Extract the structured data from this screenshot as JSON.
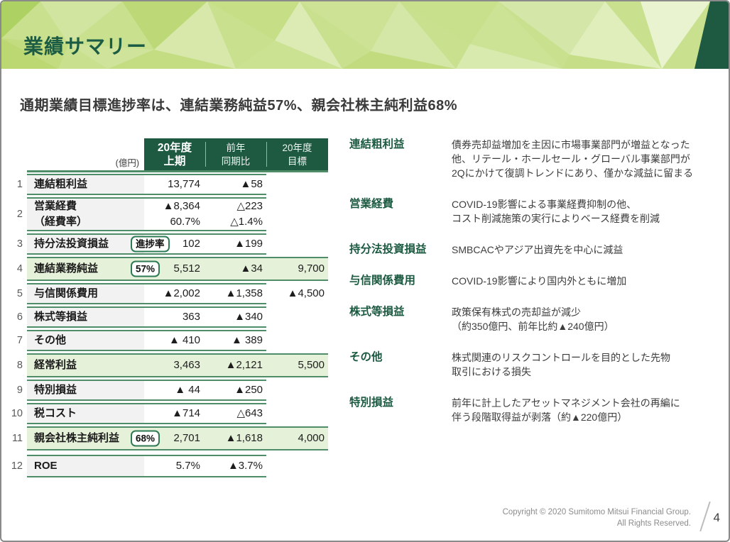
{
  "slide": {
    "title": "業績サマリー",
    "subtitle": "通期業績目標進捗率は、連結業務純益57%、親会社株主純利益68%",
    "footer": {
      "copyright_line1": "Copyright © 2020 Sumitomo Mitsui Financial Group.",
      "copyright_line2": "All Rights Reserved.",
      "page_number": "4"
    }
  },
  "colors": {
    "brand_dark_green": "#1e5a42",
    "title_green": "#1c5c44",
    "line_green": "#4f8c68",
    "highlight_row_green": "#e6f1da",
    "label_column_gray": "#f2f2f2",
    "banner_light_green": "#c9e18f"
  },
  "table": {
    "unit_label": "(億円)",
    "columns": [
      {
        "line1": "20年度",
        "line2": "上期",
        "emphasis": true
      },
      {
        "line1": "前年",
        "line2": "同期比",
        "emphasis": false
      },
      {
        "line1": "20年度",
        "line2": "目標",
        "emphasis": false
      }
    ],
    "rows": [
      {
        "num": "1",
        "label": "連結粗利益",
        "c1": "13,774",
        "c2": "▲58",
        "c3": "",
        "highlight": false
      },
      {
        "num": "2",
        "label": "営業経費",
        "label2": "（経費率）",
        "c1": "▲8,364",
        "c1b": "60.7%",
        "c2": "△223",
        "c2b": "△1.4%",
        "c3": "",
        "highlight": false
      },
      {
        "num": "3",
        "label": "持分法投資損益",
        "badge": "進捗率",
        "c1": "102",
        "c2": "▲199",
        "c3": "",
        "highlight": false
      },
      {
        "num": "4",
        "label": "連結業務純益",
        "badge": "57%",
        "c1": "5,512",
        "c2": "▲34",
        "c3": "9,700",
        "highlight": true
      },
      {
        "num": "5",
        "label": "与信関係費用",
        "c1": "▲2,002",
        "c2": "▲1,358",
        "c3": "▲4,500",
        "highlight": false
      },
      {
        "num": "6",
        "label": "株式等損益",
        "c1": "363",
        "c2": "▲340",
        "c3": "",
        "highlight": false
      },
      {
        "num": "7",
        "label": "その他",
        "c1": "▲ 410",
        "c2": "▲ 389",
        "c3": "",
        "highlight": false
      },
      {
        "num": "8",
        "label": "経常利益",
        "c1": "3,463",
        "c2": "▲2,121",
        "c3": "5,500",
        "highlight": true
      },
      {
        "num": "9",
        "label": "特別損益",
        "c1": "▲ 44",
        "c2": "▲250",
        "c3": "",
        "highlight": false
      },
      {
        "num": "10",
        "label": "税コスト",
        "c1": "▲714",
        "c2": "△643",
        "c3": "",
        "highlight": false
      },
      {
        "num": "11",
        "label": "親会社株主純利益",
        "badge": "68%",
        "c1": "2,701",
        "c2": "▲1,618",
        "c3": "4,000",
        "highlight": true
      },
      {
        "num": "12",
        "label": "ROE",
        "c1": "5.7%",
        "c2": "▲3.7%",
        "c3": "",
        "highlight": false,
        "last": true
      }
    ]
  },
  "notes": [
    {
      "term": "連結粗利益",
      "desc": "債券売却益増加を主因に市場事業部門が増益となった\n他、リテール・ホールセール・グローバル事業部門が\n2Qにかけて復調トレンドにあり、僅かな減益に留まる"
    },
    {
      "term": "営業経費",
      "desc": "COVID-19影響による事業経費抑制の他、\nコスト削減施策の実行によりベース経費を削減"
    },
    {
      "term": "持分法投資損益",
      "desc": "SMBCACやアジア出資先を中心に減益"
    },
    {
      "term": "与信関係費用",
      "desc": "COVID-19影響により国内外ともに増加"
    },
    {
      "term": "株式等損益",
      "desc": "政策保有株式の売却益が減少\n（約350億円、前年比約▲240億円）"
    },
    {
      "term": "その他",
      "desc": "株式関連のリスクコントロールを目的とした先物\n取引における損失"
    },
    {
      "term": "特別損益",
      "desc": "前年に計上したアセットマネジメント会社の再編に\n伴う段階取得益が剥落（約▲220億円）"
    }
  ]
}
